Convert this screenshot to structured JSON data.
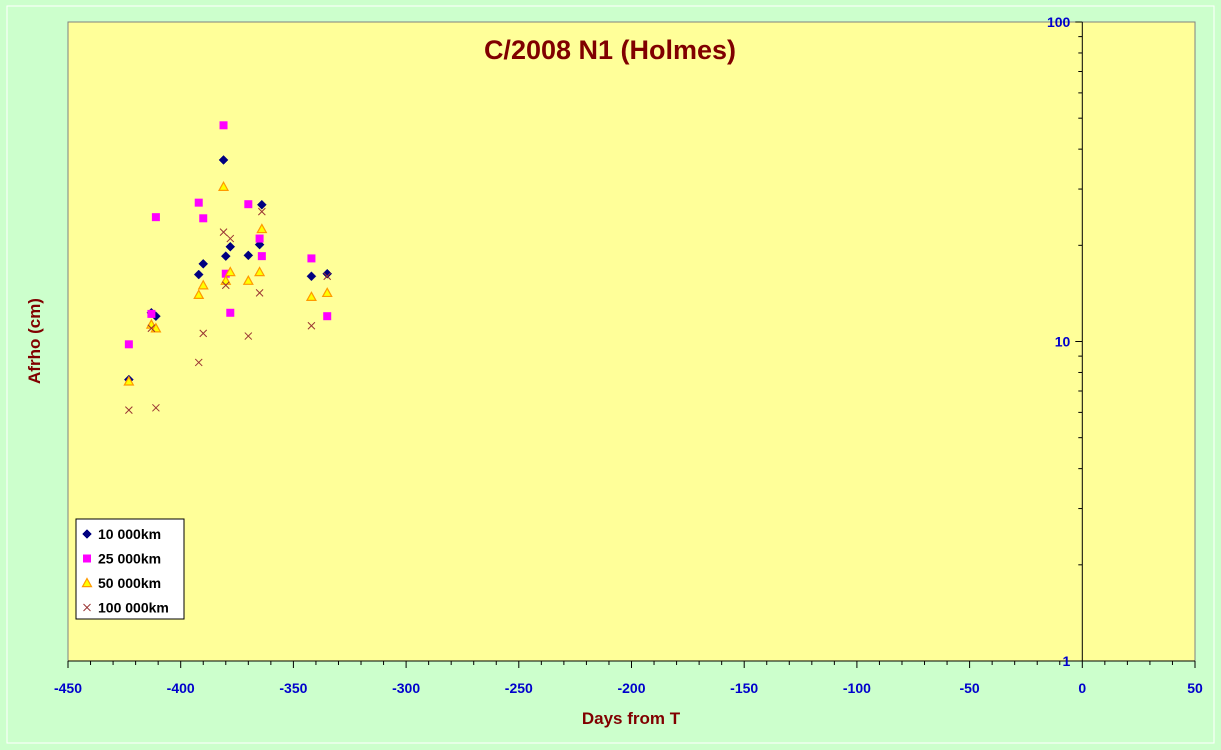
{
  "chart_data": {
    "type": "scatter",
    "title": "C/2008 N1 (Holmes)",
    "xlabel": "Days from T",
    "ylabel": "Afrho (cm)",
    "xlim": [
      -450,
      50
    ],
    "ylim": [
      1,
      100
    ],
    "y_scale": "log",
    "y_axis_position": "right-at-x-0",
    "x_ticks": [
      "-450",
      "-400",
      "-350",
      "-300",
      "-250",
      "-200",
      "-150",
      "-100",
      "-50",
      "0",
      "50"
    ],
    "y_ticks": [
      "1",
      "10",
      "100"
    ],
    "grid": false,
    "legend_position": "bottom-left",
    "colors": {
      "outer_background": "#ccffcc",
      "plot_background": "#ffff99",
      "title": "#800000",
      "axis_label": "#800000",
      "tick_label": "#0000cc"
    },
    "series": [
      {
        "name": "10 000km",
        "marker": "diamond",
        "color": "#000080",
        "points": [
          [
            -423,
            7.6
          ],
          [
            -413,
            12.3
          ],
          [
            -411,
            12.0
          ],
          [
            -392,
            16.2
          ],
          [
            -390,
            17.5
          ],
          [
            -381,
            37.0
          ],
          [
            -380,
            18.5
          ],
          [
            -378,
            19.8
          ],
          [
            -370,
            18.6
          ],
          [
            -365,
            20.1
          ],
          [
            -364,
            26.8
          ],
          [
            -342,
            16.0
          ],
          [
            -335,
            16.3
          ]
        ]
      },
      {
        "name": "25 000km",
        "marker": "square",
        "color": "#ff00ff",
        "points": [
          [
            -423,
            9.8
          ],
          [
            -413,
            12.2
          ],
          [
            -411,
            24.5
          ],
          [
            -392,
            27.2
          ],
          [
            -390,
            24.3
          ],
          [
            -381,
            47.5
          ],
          [
            -380,
            16.3
          ],
          [
            -378,
            12.3
          ],
          [
            -370,
            26.9
          ],
          [
            -365,
            21.0
          ],
          [
            -364,
            18.5
          ],
          [
            -342,
            18.2
          ],
          [
            -335,
            12.0
          ]
        ]
      },
      {
        "name": "50 000km",
        "marker": "triangle",
        "color": "#ff9900",
        "points": [
          [
            -423,
            7.5
          ],
          [
            -413,
            11.3
          ],
          [
            -411,
            11.0
          ],
          [
            -392,
            14.0
          ],
          [
            -390,
            15.0
          ],
          [
            -381,
            30.5
          ],
          [
            -380,
            15.5
          ],
          [
            -378,
            16.5
          ],
          [
            -370,
            15.5
          ],
          [
            -365,
            16.5
          ],
          [
            -364,
            22.5
          ],
          [
            -342,
            13.8
          ],
          [
            -335,
            14.2
          ]
        ]
      },
      {
        "name": "100 000km",
        "marker": "x",
        "color": "#993333",
        "points": [
          [
            -423,
            6.1
          ],
          [
            -413,
            11.0
          ],
          [
            -411,
            6.2
          ],
          [
            -392,
            8.6
          ],
          [
            -390,
            10.6
          ],
          [
            -381,
            22.0
          ],
          [
            -380,
            15.0
          ],
          [
            -378,
            21.0
          ],
          [
            -370,
            10.4
          ],
          [
            -365,
            14.2
          ],
          [
            -364,
            25.5
          ],
          [
            -342,
            11.2
          ],
          [
            -335,
            16.0
          ]
        ]
      }
    ]
  }
}
